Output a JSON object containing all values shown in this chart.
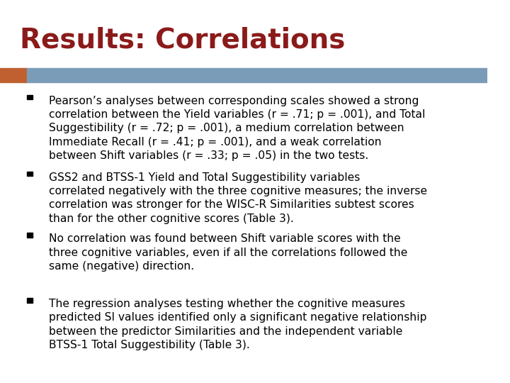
{
  "title": "Results: Correlations",
  "title_color": "#8B1A1A",
  "title_fontsize": 28,
  "title_font": "DejaVu Sans",
  "background_color": "#FFFFFF",
  "header_bar_color": "#7B9CB8",
  "header_bar_left_color": "#C06030",
  "bullet_color": "#000000",
  "bullet_fontsize": 11.2,
  "bullets": [
    "Pearson’s analyses between corresponding scales showed a strong\ncorrelation between the Yield variables (r = .71; p = .001), and Total\nSuggestibility (r = .72; p = .001), a medium correlation between\nImmediate Recall (r = .41; p = .001), and a weak correlation\nbetween Shift variables (r = .33; p = .05) in the two tests.",
    "GSS2 and BTSS-1 Yield and Total Suggestibility variables\ncorrelated negatively with the three cognitive measures; the inverse\ncorrelation was stronger for the WISC-R Similarities subtest scores\nthan for the other cognitive scores (Table 3).",
    "No correlation was found between Shift variable scores with the\nthree cognitive variables, even if all the correlations followed the\nsame (negative) direction.",
    "The regression analyses testing whether the cognitive measures\npredicted SI values identified only a significant negative relationship\nbetween the predictor Similarities and the independent variable\nBTSS-1 Total Suggestibility (Table 3)."
  ]
}
